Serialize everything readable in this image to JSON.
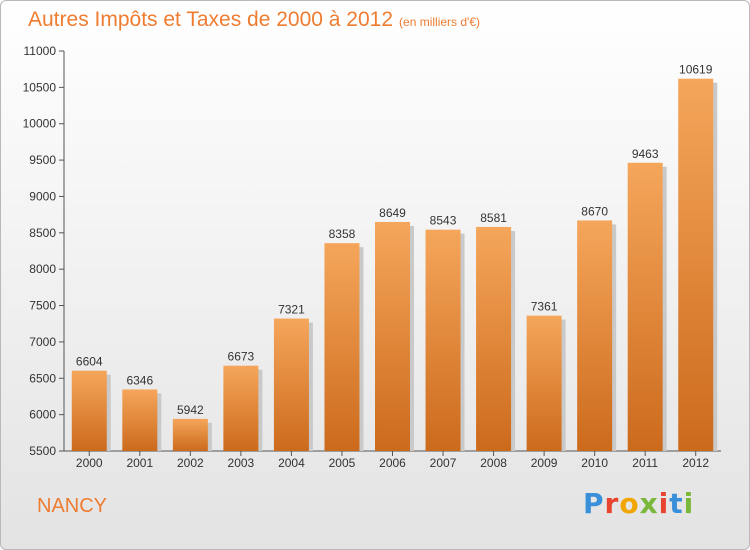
{
  "header": {
    "title": "Autres Impôts et Taxes de 2000 à 2012",
    "subtitle": "(en milliers d'€)"
  },
  "footer": {
    "place": "NANCY",
    "logo": "Proxiti",
    "logo_colors": [
      "#3a8fd9",
      "#e8442f",
      "#f0a500",
      "#79b83a",
      "#e8442f",
      "#3a8fd9",
      "#79b83a"
    ]
  },
  "chart_data": {
    "type": "bar",
    "title": "Autres Impôts et Taxes de 2000 à 2012",
    "categories": [
      "2000",
      "2001",
      "2002",
      "2003",
      "2004",
      "2005",
      "2006",
      "2007",
      "2008",
      "2009",
      "2010",
      "2011",
      "2012"
    ],
    "values": [
      6604,
      6346,
      5942,
      6673,
      7321,
      8358,
      8649,
      8543,
      8581,
      7361,
      8670,
      9463,
      10619
    ],
    "ylim": [
      5500,
      11000
    ],
    "yticks": [
      5500,
      6000,
      6500,
      7000,
      7500,
      8000,
      8500,
      9000,
      9500,
      10000,
      10500,
      11000
    ],
    "grid": false,
    "data_labels": true,
    "colors": {
      "bar_top": "#f5a65b",
      "bar_bottom": "#cc6a1c",
      "shadow": "#c9c9c9",
      "accent": "#ee7c31"
    }
  }
}
